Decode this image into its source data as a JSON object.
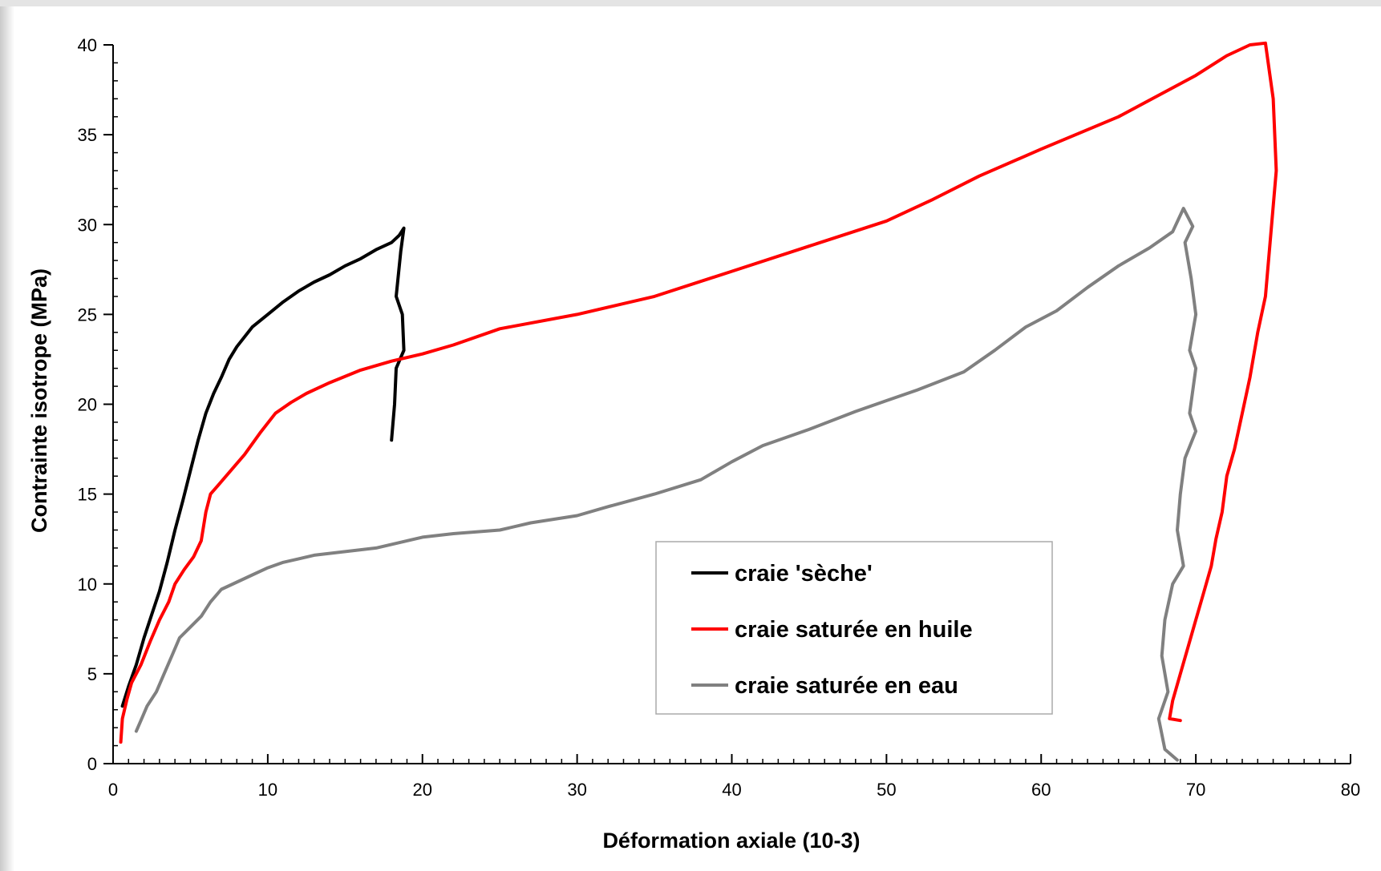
{
  "chart_data": {
    "type": "line",
    "xlabel": "Déformation axiale (10-3)",
    "ylabel": "Contrainte isotrope (MPa)",
    "xlim": [
      0,
      80
    ],
    "ylim": [
      0,
      40
    ],
    "x_ticks": [
      0,
      10,
      20,
      30,
      40,
      50,
      60,
      70,
      80
    ],
    "y_ticks": [
      0,
      5,
      10,
      15,
      20,
      25,
      30,
      35,
      40
    ],
    "grid": false,
    "legend_position": "lower-right (inside plot)",
    "series": [
      {
        "name": "craie 'sèche'",
        "color": "#000000",
        "points": [
          [
            0.6,
            3.2
          ],
          [
            1.0,
            4.3
          ],
          [
            1.5,
            5.5
          ],
          [
            2.0,
            7.0
          ],
          [
            2.5,
            8.3
          ],
          [
            3.0,
            9.6
          ],
          [
            3.5,
            11.2
          ],
          [
            4.0,
            13.0
          ],
          [
            4.5,
            14.6
          ],
          [
            5.0,
            16.3
          ],
          [
            5.5,
            18.0
          ],
          [
            6.0,
            19.5
          ],
          [
            6.5,
            20.6
          ],
          [
            7.0,
            21.5
          ],
          [
            7.5,
            22.5
          ],
          [
            8.0,
            23.2
          ],
          [
            9.0,
            24.3
          ],
          [
            10.0,
            25.0
          ],
          [
            11.0,
            25.7
          ],
          [
            12.0,
            26.3
          ],
          [
            13.0,
            26.8
          ],
          [
            14.0,
            27.2
          ],
          [
            15.0,
            27.7
          ],
          [
            16.0,
            28.1
          ],
          [
            17.0,
            28.6
          ],
          [
            18.0,
            29.0
          ],
          [
            18.5,
            29.4
          ],
          [
            18.8,
            29.8
          ],
          [
            18.6,
            28.5
          ],
          [
            18.3,
            26.0
          ],
          [
            18.7,
            25.0
          ],
          [
            18.8,
            23.0
          ],
          [
            18.3,
            22.0
          ],
          [
            18.2,
            20.0
          ],
          [
            18.0,
            18.0
          ]
        ]
      },
      {
        "name": "craie saturée en huile",
        "color": "#ff0000",
        "points": [
          [
            0.5,
            1.2
          ],
          [
            0.6,
            2.5
          ],
          [
            0.9,
            3.6
          ],
          [
            1.2,
            4.5
          ],
          [
            1.8,
            5.5
          ],
          [
            2.4,
            6.8
          ],
          [
            3.0,
            8.0
          ],
          [
            3.6,
            9.0
          ],
          [
            4.0,
            10.0
          ],
          [
            4.6,
            10.8
          ],
          [
            5.2,
            11.5
          ],
          [
            5.7,
            12.4
          ],
          [
            6.0,
            14.0
          ],
          [
            6.3,
            15.0
          ],
          [
            6.8,
            15.5
          ],
          [
            7.5,
            16.2
          ],
          [
            8.5,
            17.2
          ],
          [
            9.5,
            18.4
          ],
          [
            10.5,
            19.5
          ],
          [
            11.5,
            20.1
          ],
          [
            12.5,
            20.6
          ],
          [
            14.0,
            21.2
          ],
          [
            16.0,
            21.9
          ],
          [
            18.0,
            22.4
          ],
          [
            20.0,
            22.8
          ],
          [
            22.0,
            23.3
          ],
          [
            25.0,
            24.2
          ],
          [
            30.0,
            25.0
          ],
          [
            35.0,
            26.0
          ],
          [
            40.0,
            27.4
          ],
          [
            45.0,
            28.8
          ],
          [
            50.0,
            30.2
          ],
          [
            53.0,
            31.4
          ],
          [
            56.0,
            32.7
          ],
          [
            60.0,
            34.2
          ],
          [
            65.0,
            36.0
          ],
          [
            70.0,
            38.3
          ],
          [
            72.0,
            39.4
          ],
          [
            73.5,
            40.0
          ],
          [
            74.5,
            40.1
          ],
          [
            75.0,
            37.0
          ],
          [
            75.2,
            33.0
          ],
          [
            74.8,
            29.0
          ],
          [
            74.5,
            26.0
          ],
          [
            74.0,
            24.0
          ],
          [
            73.5,
            21.5
          ],
          [
            73.0,
            19.5
          ],
          [
            72.5,
            17.5
          ],
          [
            72.0,
            16.0
          ],
          [
            71.7,
            14.0
          ],
          [
            71.3,
            12.5
          ],
          [
            71.0,
            11.0
          ],
          [
            70.5,
            9.5
          ],
          [
            70.0,
            8.0
          ],
          [
            69.5,
            6.5
          ],
          [
            69.0,
            5.0
          ],
          [
            68.5,
            3.5
          ],
          [
            68.3,
            2.5
          ],
          [
            69.0,
            2.4
          ]
        ]
      },
      {
        "name": "craie saturée en eau",
        "color": "#808080",
        "points": [
          [
            1.5,
            1.8
          ],
          [
            1.8,
            2.4
          ],
          [
            2.2,
            3.2
          ],
          [
            2.8,
            4.0
          ],
          [
            3.3,
            5.0
          ],
          [
            3.8,
            6.0
          ],
          [
            4.3,
            7.0
          ],
          [
            5.0,
            7.6
          ],
          [
            5.7,
            8.2
          ],
          [
            6.3,
            9.0
          ],
          [
            7.0,
            9.7
          ],
          [
            8.0,
            10.1
          ],
          [
            9.0,
            10.5
          ],
          [
            10.0,
            10.9
          ],
          [
            11.0,
            11.2
          ],
          [
            12.0,
            11.4
          ],
          [
            13.0,
            11.6
          ],
          [
            15.0,
            11.8
          ],
          [
            17.0,
            12.0
          ],
          [
            18.0,
            12.2
          ],
          [
            19.0,
            12.4
          ],
          [
            20.0,
            12.6
          ],
          [
            22.0,
            12.8
          ],
          [
            25.0,
            13.0
          ],
          [
            27.0,
            13.4
          ],
          [
            30.0,
            13.8
          ],
          [
            32.0,
            14.3
          ],
          [
            35.0,
            15.0
          ],
          [
            38.0,
            15.8
          ],
          [
            40.0,
            16.8
          ],
          [
            42.0,
            17.7
          ],
          [
            45.0,
            18.6
          ],
          [
            48.0,
            19.6
          ],
          [
            50.0,
            20.2
          ],
          [
            52.0,
            20.8
          ],
          [
            55.0,
            21.8
          ],
          [
            57.0,
            23.0
          ],
          [
            59.0,
            24.3
          ],
          [
            61.0,
            25.2
          ],
          [
            63.0,
            26.5
          ],
          [
            65.0,
            27.7
          ],
          [
            67.0,
            28.7
          ],
          [
            68.5,
            29.6
          ],
          [
            69.2,
            30.9
          ],
          [
            69.8,
            29.9
          ],
          [
            69.3,
            29.0
          ],
          [
            69.7,
            27.0
          ],
          [
            70.0,
            25.0
          ],
          [
            69.6,
            23.0
          ],
          [
            70.0,
            22.0
          ],
          [
            69.6,
            19.5
          ],
          [
            70.0,
            18.5
          ],
          [
            69.3,
            17.0
          ],
          [
            69.0,
            15.0
          ],
          [
            68.8,
            13.0
          ],
          [
            69.2,
            11.0
          ],
          [
            68.5,
            10.0
          ],
          [
            68.0,
            8.0
          ],
          [
            67.8,
            6.0
          ],
          [
            68.2,
            4.0
          ],
          [
            67.6,
            2.5
          ],
          [
            68.0,
            0.8
          ],
          [
            68.8,
            0.2
          ]
        ]
      }
    ]
  },
  "legend_items": [
    {
      "label": "craie 'sèche'",
      "color": "#000000"
    },
    {
      "label": "craie saturée en huile",
      "color": "#ff0000"
    },
    {
      "label": "craie saturée en eau",
      "color": "#808080"
    }
  ]
}
